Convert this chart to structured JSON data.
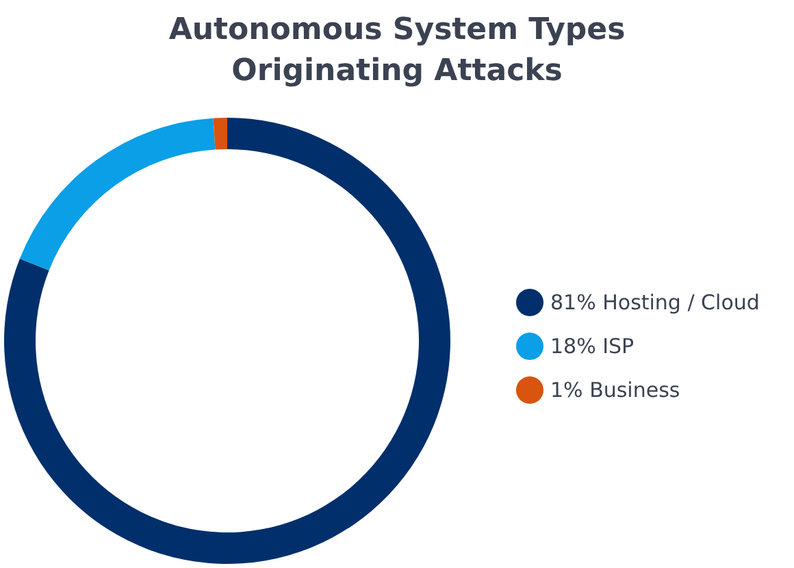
{
  "chart_data": {
    "type": "donut",
    "title": "Autonomous System Types\nOriginating Attacks",
    "categories": [
      "81% Hosting / Cloud",
      "18% ISP",
      "1% Business"
    ],
    "values": [
      81,
      18,
      1
    ],
    "colors": [
      "#002f6c",
      "#0a9fe6",
      "#d9540f"
    ],
    "legend": "right"
  }
}
